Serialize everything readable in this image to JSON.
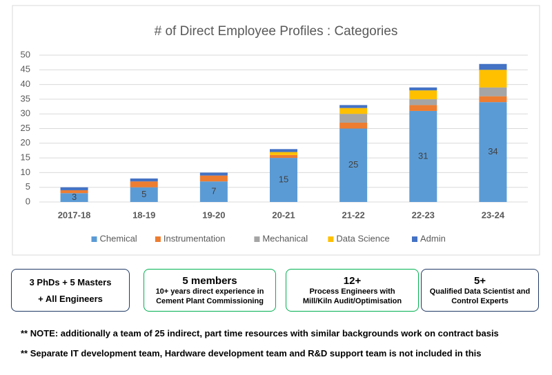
{
  "chart_data": {
    "type": "stacked_bar",
    "title": "# of Direct Employee Profiles : Categories",
    "categories": [
      "2017-18",
      "18-19",
      "19-20",
      "20-21",
      "21-22",
      "22-23",
      "23-24"
    ],
    "series": [
      {
        "name": "Chemical",
        "color": "#5b9bd5",
        "values": [
          3,
          5,
          7,
          15,
          25,
          31,
          34
        ],
        "show_labels": true
      },
      {
        "name": "Instrumentation",
        "color": "#ed7d31",
        "values": [
          1,
          2,
          2,
          1,
          2,
          2,
          2
        ]
      },
      {
        "name": "Mechanical",
        "color": "#a5a5a5",
        "values": [
          0,
          0,
          0,
          0,
          3,
          2,
          3
        ]
      },
      {
        "name": "Data Science",
        "color": "#ffc000",
        "values": [
          0,
          0,
          0,
          1,
          2,
          3,
          6
        ]
      },
      {
        "name": "Admin",
        "color": "#4472c4",
        "values": [
          1,
          1,
          1,
          1,
          1,
          1,
          2
        ]
      }
    ],
    "ylim": [
      0,
      50
    ],
    "yticks": [
      0,
      5,
      10,
      15,
      20,
      25,
      30,
      35,
      40,
      45,
      50
    ],
    "grid": true,
    "legend": "bottom"
  },
  "info_boxes": [
    {
      "headline": "3 PhDs + 5 Masters",
      "lines": [
        "+ All Engineers"
      ]
    },
    {
      "headline": "5 members",
      "lines": [
        "10+ years direct experience in",
        "Cement Plant Commissioning"
      ]
    },
    {
      "headline": "12+",
      "lines": [
        "Process Engineers with",
        "Mill/Kiln Audit/Optimisation"
      ]
    },
    {
      "headline": "5+",
      "lines": [
        "Qualified Data Scientist and",
        "Control Experts"
      ]
    }
  ],
  "notes": [
    "** NOTE: additionally a team of 25 indirect, part time resources with similar backgrounds work on contract basis",
    "** Separate IT development team, Hardware development team and R&D support team is not included in this"
  ]
}
